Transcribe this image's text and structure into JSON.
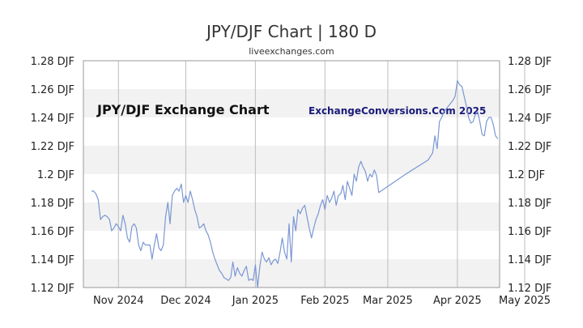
{
  "title": "JPY/DJF Chart | 180 D",
  "subtitle": "liveexchanges.com",
  "watermark_left": "JPY/DJF Exchange Chart",
  "watermark_right": "ExchangeConversions.Com 2025",
  "colors": {
    "line": "#7b97d4",
    "band": "#f2f2f2",
    "grid": "#bdbdbd",
    "border": "#999999"
  },
  "chart_data": {
    "type": "line",
    "title": "JPY/DJF Chart | 180 D",
    "xlabel": "",
    "ylabel": "",
    "ylim": [
      1.12,
      1.28
    ],
    "xlim": [
      0,
      180
    ],
    "y_ticks": [
      1.12,
      1.14,
      1.16,
      1.18,
      1.2,
      1.22,
      1.24,
      1.26,
      1.28
    ],
    "y_tick_labels": [
      "1.12 DJF",
      "1.14 DJF",
      "1.16 DJF",
      "1.18 DJF",
      "1.2 DJF",
      "1.22 DJF",
      "1.24 DJF",
      "1.26 DJF",
      "1.28 DJF"
    ],
    "x_tick_labels": [
      {
        "label": "Nov 2024",
        "day": 12
      },
      {
        "label": "Dec 2024",
        "day": 42
      },
      {
        "label": "Jan 2025",
        "day": 73
      },
      {
        "label": "Feb 2025",
        "day": 104
      },
      {
        "label": "Mar 2025",
        "day": 132
      },
      {
        "label": "Apr 2025",
        "day": 163
      },
      {
        "label": "May 2025",
        "day": 193
      }
    ],
    "grid": true,
    "series": [
      {
        "values": [
          [
            0,
            1.188
          ],
          [
            1,
            1.188
          ],
          [
            2,
            1.186
          ],
          [
            3,
            1.182
          ],
          [
            4,
            1.168
          ],
          [
            5,
            1.17
          ],
          [
            6,
            1.171
          ],
          [
            7,
            1.17
          ],
          [
            8,
            1.168
          ],
          [
            9,
            1.16
          ],
          [
            10,
            1.162
          ],
          [
            11,
            1.165
          ],
          [
            12,
            1.163
          ],
          [
            13,
            1.16
          ],
          [
            14,
            1.171
          ],
          [
            15,
            1.165
          ],
          [
            16,
            1.155
          ],
          [
            17,
            1.152
          ],
          [
            18,
            1.163
          ],
          [
            19,
            1.165
          ],
          [
            20,
            1.162
          ],
          [
            21,
            1.15
          ],
          [
            22,
            1.146
          ],
          [
            23,
            1.152
          ],
          [
            24,
            1.15
          ],
          [
            25,
            1.15
          ],
          [
            26,
            1.15
          ],
          [
            27,
            1.14
          ],
          [
            28,
            1.15
          ],
          [
            29,
            1.158
          ],
          [
            30,
            1.148
          ],
          [
            31,
            1.146
          ],
          [
            32,
            1.15
          ],
          [
            33,
            1.17
          ],
          [
            34,
            1.18
          ],
          [
            35,
            1.165
          ],
          [
            36,
            1.185
          ],
          [
            37,
            1.188
          ],
          [
            38,
            1.19
          ],
          [
            39,
            1.188
          ],
          [
            40,
            1.193
          ],
          [
            41,
            1.18
          ],
          [
            42,
            1.185
          ],
          [
            43,
            1.18
          ],
          [
            44,
            1.188
          ],
          [
            45,
            1.182
          ],
          [
            46,
            1.175
          ],
          [
            47,
            1.17
          ],
          [
            48,
            1.162
          ],
          [
            49,
            1.163
          ],
          [
            50,
            1.165
          ],
          [
            51,
            1.16
          ],
          [
            52,
            1.157
          ],
          [
            53,
            1.152
          ],
          [
            54,
            1.145
          ],
          [
            55,
            1.14
          ],
          [
            56,
            1.136
          ],
          [
            57,
            1.132
          ],
          [
            58,
            1.13
          ],
          [
            59,
            1.127
          ],
          [
            60,
            1.126
          ],
          [
            61,
            1.125
          ],
          [
            62,
            1.127
          ],
          [
            63,
            1.138
          ],
          [
            64,
            1.128
          ],
          [
            65,
            1.134
          ],
          [
            66,
            1.13
          ],
          [
            67,
            1.128
          ],
          [
            68,
            1.132
          ],
          [
            69,
            1.135
          ],
          [
            70,
            1.125
          ],
          [
            71,
            1.126
          ],
          [
            72,
            1.125
          ],
          [
            73,
            1.136
          ],
          [
            74,
            1.12
          ],
          [
            75,
            1.135
          ],
          [
            76,
            1.145
          ],
          [
            77,
            1.14
          ],
          [
            78,
            1.138
          ],
          [
            79,
            1.141
          ],
          [
            80,
            1.136
          ],
          [
            81,
            1.139
          ],
          [
            82,
            1.14
          ],
          [
            83,
            1.137
          ],
          [
            84,
            1.145
          ],
          [
            85,
            1.155
          ],
          [
            86,
            1.145
          ],
          [
            87,
            1.14
          ],
          [
            88,
            1.165
          ],
          [
            89,
            1.138
          ],
          [
            90,
            1.17
          ],
          [
            91,
            1.16
          ],
          [
            92,
            1.175
          ],
          [
            93,
            1.172
          ],
          [
            94,
            1.176
          ],
          [
            95,
            1.178
          ],
          [
            96,
            1.17
          ],
          [
            97,
            1.162
          ],
          [
            98,
            1.155
          ],
          [
            99,
            1.162
          ],
          [
            100,
            1.168
          ],
          [
            101,
            1.172
          ],
          [
            102,
            1.178
          ],
          [
            103,
            1.182
          ],
          [
            104,
            1.175
          ],
          [
            105,
            1.185
          ],
          [
            106,
            1.18
          ],
          [
            107,
            1.183
          ],
          [
            108,
            1.188
          ],
          [
            109,
            1.178
          ],
          [
            110,
            1.185
          ],
          [
            111,
            1.186
          ],
          [
            112,
            1.192
          ],
          [
            113,
            1.182
          ],
          [
            114,
            1.195
          ],
          [
            115,
            1.19
          ],
          [
            116,
            1.185
          ],
          [
            117,
            1.2
          ],
          [
            118,
            1.195
          ],
          [
            119,
            1.205
          ],
          [
            120,
            1.209
          ],
          [
            121,
            1.205
          ],
          [
            122,
            1.202
          ],
          [
            123,
            1.195
          ],
          [
            124,
            1.2
          ],
          [
            125,
            1.198
          ],
          [
            126,
            1.203
          ],
          [
            127,
            1.199
          ],
          [
            128,
            1.187
          ],
          [
            140,
            1.2
          ],
          [
            150,
            1.21
          ],
          [
            152,
            1.215
          ],
          [
            153,
            1.227
          ],
          [
            154,
            1.218
          ],
          [
            155,
            1.237
          ],
          [
            156,
            1.24
          ],
          [
            157,
            1.244
          ],
          [
            158,
            1.246
          ],
          [
            159,
            1.248
          ],
          [
            160,
            1.25
          ],
          [
            161,
            1.252
          ],
          [
            162,
            1.255
          ],
          [
            163,
            1.266
          ],
          [
            164,
            1.263
          ],
          [
            165,
            1.262
          ],
          [
            166,
            1.255
          ],
          [
            167,
            1.248
          ],
          [
            168,
            1.24
          ],
          [
            169,
            1.236
          ],
          [
            170,
            1.237
          ],
          [
            171,
            1.242
          ],
          [
            172,
            1.244
          ],
          [
            173,
            1.237
          ],
          [
            174,
            1.228
          ],
          [
            175,
            1.227
          ],
          [
            176,
            1.237
          ],
          [
            177,
            1.24
          ],
          [
            178,
            1.24
          ],
          [
            179,
            1.235
          ],
          [
            180,
            1.227
          ],
          [
            181,
            1.225
          ]
        ]
      }
    ]
  }
}
